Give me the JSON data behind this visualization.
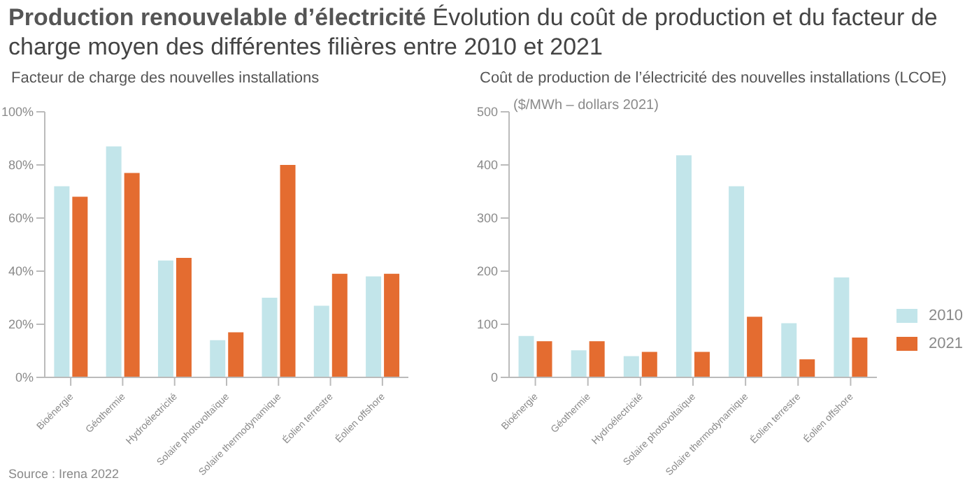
{
  "chart_data": [
    {
      "type": "bar",
      "title": "Production renouvelable d’électricité",
      "subtitle": "Évolution du coût de production et du facteur de charge moyen des différentes filières entre 2010 et 2021",
      "ylabel": "Facteur de charge des nouvelles installations",
      "annotations": [
        "Source : Irena 2022"
      ],
      "categories": [
        "Bioénergie",
        "Géothermie",
        "Hydroélectricité",
        "Solaire photovoltaïque",
        "Solaire thermodynamique",
        "Éolien terrestre",
        "Éolien offshore"
      ],
      "series": [
        {
          "color": "#c2e5ea",
          "values": [
            72,
            87,
            44,
            14,
            30,
            27,
            38
          ]
        },
        {
          "color": "#e46c30",
          "values": [
            68,
            77,
            45,
            17,
            80,
            39,
            39
          ]
        }
      ],
      "ylim": [
        0,
        100
      ],
      "yticks": [
        {
          "value": 0,
          "label": "0%"
        },
        {
          "value": 20,
          "label": "20%"
        },
        {
          "value": 40,
          "label": "40%"
        },
        {
          "value": 60,
          "label": "60%"
        },
        {
          "value": 80,
          "label": "80%"
        },
        {
          "value": 100,
          "label": "100%"
        }
      ],
      "grid": false,
      "legend": false
    },
    {
      "type": "bar",
      "title": "Coût de production de l’électricité des nouvelles installations (LCOE)",
      "ylabel": "($/MWh – dollars 2021)",
      "categories": [
        "Bioénergie",
        "Géothermie",
        "Hydroélectricité",
        "Solaire photovoltaïque",
        "Solaire thermodynamique",
        "Éolien terrestre",
        "Éolien offshore"
      ],
      "series": [
        {
          "name": "2010",
          "color": "#c2e5ea",
          "values": [
            78,
            51,
            40,
            418,
            360,
            102,
            188
          ]
        },
        {
          "name": "2021",
          "color": "#e46c30",
          "values": [
            68,
            68,
            48,
            48,
            114,
            34,
            75
          ]
        }
      ],
      "ylim": [
        0,
        500
      ],
      "yticks": [
        0,
        100,
        200,
        300,
        400,
        500
      ],
      "grid": false,
      "legend": "right"
    }
  ]
}
